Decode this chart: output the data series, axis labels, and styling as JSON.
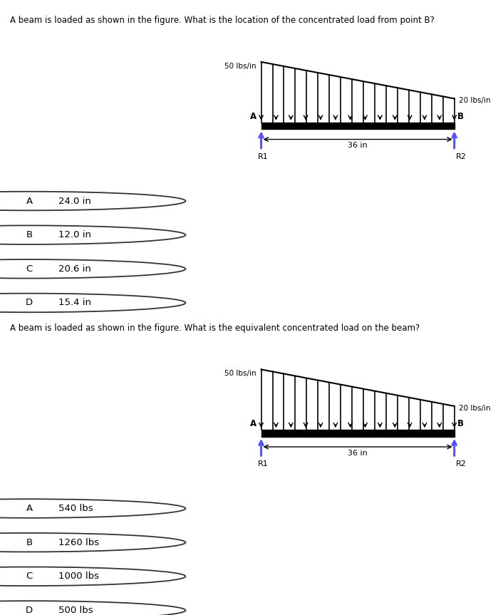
{
  "question1": {
    "title": "A beam is loaded as shown in the figure. What is the location of the concentrated load from point B?",
    "load_left": "50 lbs/in",
    "load_right": "20 lbs/in",
    "span_label": "36 in",
    "r1_label": "R1",
    "r2_label": "R2",
    "options": [
      {
        "label": "A",
        "text": "24.0 in"
      },
      {
        "label": "B",
        "text": "12.0 in"
      },
      {
        "label": "C",
        "text": "20.6 in"
      },
      {
        "label": "D",
        "text": "15.4 in"
      }
    ]
  },
  "question2": {
    "title": "A beam is loaded as shown in the figure. What is the equivalent concentrated load on the beam?",
    "load_left": "50 lbs/in",
    "load_right": "20 lbs/in",
    "span_label": "36 in",
    "r1_label": "R1",
    "r2_label": "R2",
    "options": [
      {
        "label": "A",
        "text": "540 lbs"
      },
      {
        "label": "B",
        "text": "1260 lbs"
      },
      {
        "label": "C",
        "text": "1000 lbs"
      },
      {
        "label": "D",
        "text": "500 lbs"
      }
    ]
  },
  "page_bg": "#ffffff",
  "diagram_bg": "#e8e8e8",
  "option_bg": "#f0f0f0",
  "arrow_color": "#5555ff",
  "beam_color": "#000000",
  "title_fontsize": 8.5,
  "option_fontsize": 9.5
}
